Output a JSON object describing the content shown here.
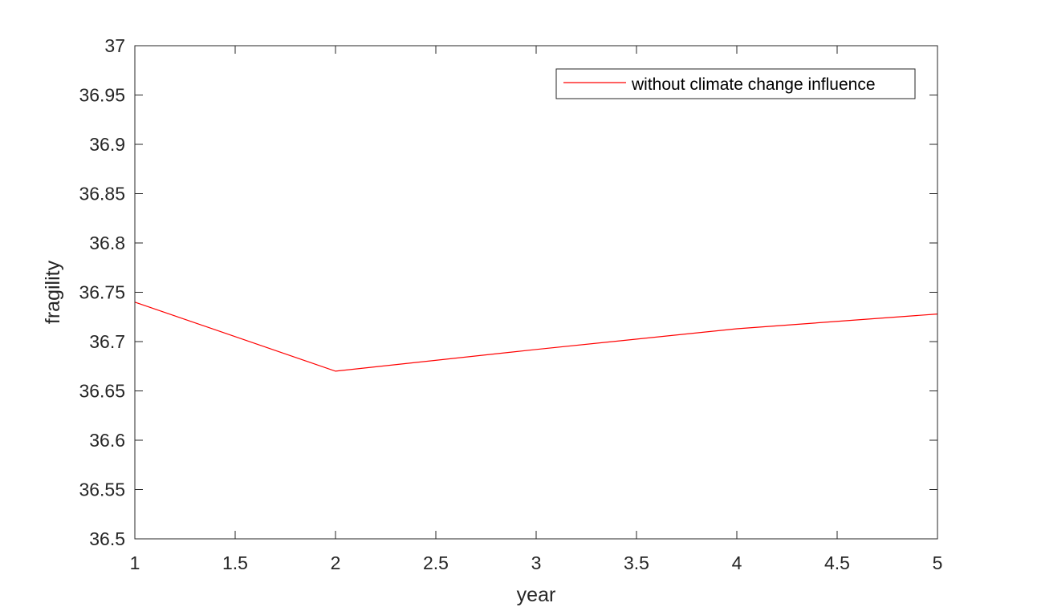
{
  "chart_data": {
    "type": "line",
    "title": "",
    "xlabel": "year",
    "ylabel": "fragility",
    "xlim": [
      1,
      5
    ],
    "ylim": [
      36.5,
      37
    ],
    "xticks": [
      "1",
      "1.5",
      "2",
      "2.5",
      "3",
      "3.5",
      "4",
      "4.5",
      "5"
    ],
    "yticks": [
      "36.5",
      "36.55",
      "36.6",
      "36.65",
      "36.7",
      "36.75",
      "36.8",
      "36.85",
      "36.9",
      "36.95",
      "37"
    ],
    "grid": false,
    "legend_position": "top-right",
    "x": [
      1,
      2,
      3,
      4,
      5
    ],
    "series": [
      {
        "name": "without climate change influence",
        "values": [
          36.74,
          36.67,
          36.692,
          36.713,
          36.728
        ],
        "color": "#ff0000"
      }
    ]
  }
}
